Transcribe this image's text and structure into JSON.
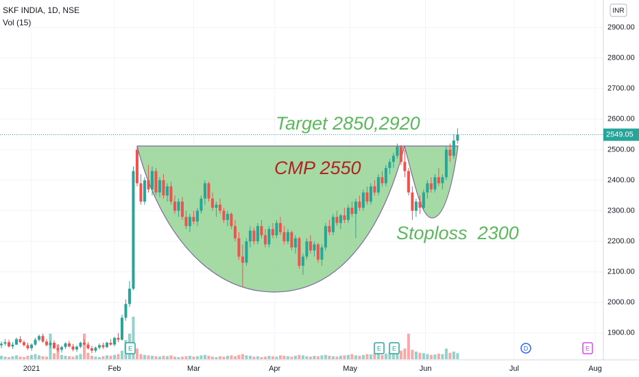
{
  "chart_data": {
    "type": "candlestick",
    "title": "SKF INDIA, 1D, NSE",
    "indicator": "Vol (15)",
    "currency": "INR",
    "annotations": [
      "Target 2850,2920",
      "CMP 2550",
      "Stoploss  2300"
    ],
    "events": [
      "E",
      "E",
      "E",
      "D",
      "E"
    ],
    "up_color": "#26a69a",
    "down_color": "#ef5350",
    "ylim": [
      1812,
      2990
    ],
    "yticks": [
      {
        "value": 1900,
        "label": "1900.00"
      },
      {
        "value": 2000,
        "label": "2000.00"
      },
      {
        "value": 2100,
        "label": "2100.00"
      },
      {
        "value": 2200,
        "label": "2200.00"
      },
      {
        "value": 2300,
        "label": "2300.00"
      },
      {
        "value": 2400,
        "label": "2400.00"
      },
      {
        "value": 2500,
        "label": "2500.00"
      },
      {
        "value": 2600,
        "label": "2600.00"
      },
      {
        "value": 2700,
        "label": "2700.00"
      },
      {
        "value": 2800,
        "label": "2800.00"
      },
      {
        "value": 2900,
        "label": "2900.00"
      }
    ],
    "xlim": [
      -0.36,
      159.3
    ],
    "xticks": [
      {
        "value": 8,
        "label": "2021"
      },
      {
        "value": 30,
        "label": "Feb"
      },
      {
        "value": 51,
        "label": "Mar"
      },
      {
        "value": 72.5,
        "label": "Apr"
      },
      {
        "value": 92.5,
        "label": "May"
      },
      {
        "value": 112.5,
        "label": "Jun"
      },
      {
        "value": 136,
        "label": "Jul"
      },
      {
        "value": 157.5,
        "label": "Aug"
      }
    ],
    "grid": true,
    "volume_lim": [
      0,
      100
    ],
    "candles": [
      [
        1860,
        1872,
        1850,
        1865
      ],
      [
        1865,
        1880,
        1858,
        1870
      ],
      [
        1870,
        1878,
        1852,
        1856
      ],
      [
        1856,
        1870,
        1848,
        1862
      ],
      [
        1862,
        1885,
        1860,
        1880
      ],
      [
        1880,
        1890,
        1866,
        1870
      ],
      [
        1870,
        1876,
        1855,
        1860
      ],
      [
        1860,
        1868,
        1845,
        1850
      ],
      [
        1850,
        1866,
        1842,
        1862
      ],
      [
        1862,
        1884,
        1858,
        1878
      ],
      [
        1878,
        1895,
        1872,
        1890
      ],
      [
        1890,
        1898,
        1868,
        1872
      ],
      [
        1872,
        1880,
        1856,
        1860
      ],
      [
        1860,
        1874,
        1850,
        1868
      ],
      [
        1868,
        1876,
        1846,
        1850
      ],
      [
        1850,
        1862,
        1838,
        1845
      ],
      [
        1845,
        1858,
        1836,
        1854
      ],
      [
        1854,
        1870,
        1848,
        1866
      ],
      [
        1866,
        1874,
        1852,
        1856
      ],
      [
        1856,
        1864,
        1840,
        1846
      ],
      [
        1846,
        1860,
        1838,
        1855
      ],
      [
        1855,
        1872,
        1850,
        1868
      ],
      [
        1868,
        1880,
        1860,
        1862
      ],
      [
        1862,
        1870,
        1846,
        1850
      ],
      [
        1850,
        1858,
        1834,
        1842
      ],
      [
        1842,
        1856,
        1836,
        1852
      ],
      [
        1852,
        1866,
        1846,
        1860
      ],
      [
        1860,
        1868,
        1848,
        1854
      ],
      [
        1854,
        1872,
        1850,
        1868
      ],
      [
        1868,
        1880,
        1858,
        1862
      ],
      [
        1862,
        1888,
        1856,
        1884
      ],
      [
        1884,
        1900,
        1870,
        1878
      ],
      [
        1878,
        1960,
        1875,
        1950
      ],
      [
        1950,
        2010,
        1940,
        1995
      ],
      [
        1995,
        2070,
        1985,
        2045
      ],
      [
        2045,
        2445,
        2040,
        2430
      ],
      [
        2500,
        2510,
        2380,
        2390
      ],
      [
        2390,
        2420,
        2320,
        2330
      ],
      [
        2330,
        2410,
        2320,
        2400
      ],
      [
        2400,
        2450,
        2360,
        2370
      ],
      [
        2370,
        2445,
        2350,
        2430
      ],
      [
        2430,
        2440,
        2350,
        2360
      ],
      [
        2360,
        2410,
        2345,
        2400
      ],
      [
        2400,
        2420,
        2340,
        2350
      ],
      [
        2350,
        2390,
        2330,
        2380
      ],
      [
        2380,
        2395,
        2320,
        2330
      ],
      [
        2330,
        2350,
        2290,
        2300
      ],
      [
        2300,
        2340,
        2280,
        2330
      ],
      [
        2330,
        2345,
        2270,
        2280
      ],
      [
        2280,
        2300,
        2240,
        2250
      ],
      [
        2250,
        2290,
        2230,
        2280
      ],
      [
        2280,
        2300,
        2255,
        2265
      ],
      [
        2265,
        2310,
        2250,
        2300
      ],
      [
        2300,
        2350,
        2290,
        2340
      ],
      [
        2340,
        2400,
        2320,
        2390
      ],
      [
        2390,
        2395,
        2330,
        2340
      ],
      [
        2340,
        2360,
        2300,
        2310
      ],
      [
        2310,
        2330,
        2280,
        2320
      ],
      [
        2320,
        2340,
        2290,
        2300
      ],
      [
        2300,
        2310,
        2260,
        2270
      ],
      [
        2270,
        2300,
        2250,
        2290
      ],
      [
        2290,
        2295,
        2240,
        2250
      ],
      [
        2250,
        2270,
        2200,
        2210
      ],
      [
        2210,
        2230,
        2140,
        2150
      ],
      [
        2150,
        2190,
        2050,
        2130
      ],
      [
        2130,
        2210,
        2120,
        2200
      ],
      [
        2200,
        2250,
        2180,
        2235
      ],
      [
        2235,
        2245,
        2190,
        2200
      ],
      [
        2200,
        2260,
        2190,
        2250
      ],
      [
        2250,
        2270,
        2210,
        2220
      ],
      [
        2220,
        2240,
        2180,
        2190
      ],
      [
        2190,
        2250,
        2180,
        2240
      ],
      [
        2240,
        2260,
        2210,
        2220
      ],
      [
        2220,
        2270,
        2210,
        2260
      ],
      [
        2260,
        2280,
        2220,
        2230
      ],
      [
        2230,
        2250,
        2190,
        2200
      ],
      [
        2200,
        2240,
        2190,
        2230
      ],
      [
        2230,
        2235,
        2170,
        2180
      ],
      [
        2180,
        2220,
        2160,
        2210
      ],
      [
        2210,
        2215,
        2110,
        2120
      ],
      [
        2120,
        2160,
        2090,
        2150
      ],
      [
        2150,
        2210,
        2140,
        2200
      ],
      [
        2200,
        2220,
        2160,
        2170
      ],
      [
        2170,
        2200,
        2150,
        2190
      ],
      [
        2190,
        2195,
        2130,
        2140
      ],
      [
        2140,
        2190,
        2120,
        2180
      ],
      [
        2180,
        2260,
        2170,
        2250
      ],
      [
        2250,
        2270,
        2220,
        2230
      ],
      [
        2230,
        2290,
        2220,
        2280
      ],
      [
        2280,
        2300,
        2250,
        2260
      ],
      [
        2260,
        2290,
        2240,
        2285
      ],
      [
        2285,
        2310,
        2260,
        2270
      ],
      [
        2270,
        2320,
        2260,
        2310
      ],
      [
        2310,
        2330,
        2280,
        2290
      ],
      [
        2290,
        2340,
        2210,
        2330
      ],
      [
        2330,
        2350,
        2300,
        2310
      ],
      [
        2310,
        2370,
        2300,
        2360
      ],
      [
        2360,
        2380,
        2320,
        2330
      ],
      [
        2330,
        2390,
        2320,
        2380
      ],
      [
        2380,
        2400,
        2350,
        2360
      ],
      [
        2360,
        2420,
        2350,
        2410
      ],
      [
        2410,
        2430,
        2380,
        2390
      ],
      [
        2390,
        2450,
        2380,
        2440
      ],
      [
        2440,
        2470,
        2420,
        2460
      ],
      [
        2460,
        2490,
        2440,
        2480
      ],
      [
        2480,
        2520,
        2470,
        2510
      ],
      [
        2510,
        2515,
        2450,
        2460
      ],
      [
        2460,
        2500,
        2410,
        2430
      ],
      [
        2430,
        2440,
        2350,
        2360
      ],
      [
        2360,
        2380,
        2270,
        2300
      ],
      [
        2300,
        2340,
        2280,
        2330
      ],
      [
        2330,
        2350,
        2290,
        2310
      ],
      [
        2310,
        2370,
        2300,
        2360
      ],
      [
        2360,
        2400,
        2340,
        2390
      ],
      [
        2390,
        2410,
        2360,
        2370
      ],
      [
        2370,
        2420,
        2360,
        2410
      ],
      [
        2410,
        2440,
        2380,
        2390
      ],
      [
        2390,
        2420,
        2370,
        2410
      ],
      [
        2410,
        2510,
        2400,
        2500
      ],
      [
        2500,
        2520,
        2460,
        2480
      ],
      [
        2480,
        2550,
        2470,
        2530
      ],
      [
        2530,
        2570,
        2520,
        2549.05
      ]
    ],
    "volume": [
      8,
      6,
      5,
      7,
      9,
      6,
      5,
      8,
      10,
      12,
      9,
      7,
      6,
      60,
      14,
      35,
      10,
      8,
      7,
      6,
      9,
      12,
      60,
      15,
      8,
      6,
      5,
      7,
      9,
      8,
      10,
      12,
      20,
      45,
      60,
      100,
      25,
      12,
      10,
      9,
      8,
      7,
      6,
      8,
      7,
      9,
      6,
      5,
      6,
      7,
      8,
      6,
      7,
      9,
      10,
      8,
      6,
      5,
      7,
      6,
      8,
      9,
      7,
      10,
      12,
      9,
      8,
      6,
      7,
      5,
      6,
      8,
      7,
      6,
      9,
      8,
      7,
      6,
      8,
      10,
      9,
      7,
      6,
      8,
      7,
      9,
      10,
      8,
      7,
      6,
      8,
      9,
      10,
      12,
      9,
      8,
      10,
      12,
      11,
      14,
      12,
      10,
      13,
      15,
      18,
      30,
      20,
      25,
      60,
      22,
      18,
      15,
      14,
      12,
      10,
      11,
      13,
      12,
      25,
      15,
      18,
      14
    ]
  }
}
